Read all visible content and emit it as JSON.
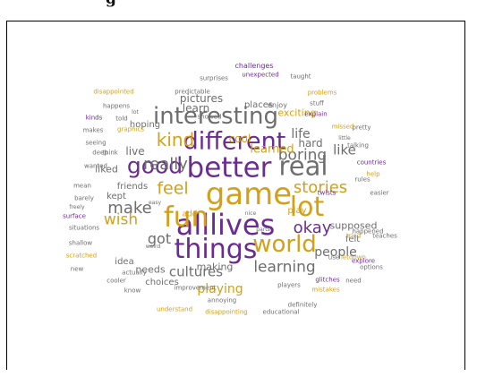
{
  "heading": "g",
  "words": [
    {
      "text": "alllives",
      "color": "purple",
      "size": 32
    },
    {
      "text": "game",
      "color": "gold",
      "size": 34
    },
    {
      "text": "better",
      "color": "purple",
      "size": 31
    },
    {
      "text": "fun",
      "color": "gold",
      "size": 31
    },
    {
      "text": "things",
      "color": "purple",
      "size": 30
    },
    {
      "text": "different",
      "color": "purple",
      "size": 27
    },
    {
      "text": "interesting",
      "color": "gray",
      "size": 26
    },
    {
      "text": "lot",
      "color": "gold",
      "size": 30
    },
    {
      "text": "real",
      "color": "gray",
      "size": 29
    },
    {
      "text": "world",
      "color": "gold",
      "size": 26
    },
    {
      "text": "good",
      "color": "purple",
      "size": 25
    },
    {
      "text": "kind",
      "color": "gold",
      "size": 20
    },
    {
      "text": "really",
      "color": "gray",
      "size": 18
    },
    {
      "text": "feel",
      "color": "gold",
      "size": 19
    },
    {
      "text": "make",
      "color": "gray",
      "size": 18
    },
    {
      "text": "okay",
      "color": "purple",
      "size": 18
    },
    {
      "text": "stories",
      "color": "gold",
      "size": 18
    },
    {
      "text": "boring",
      "color": "gray",
      "size": 17
    },
    {
      "text": "learning",
      "color": "gray",
      "size": 17
    },
    {
      "text": "cultures",
      "color": "gray",
      "size": 15
    },
    {
      "text": "wish",
      "color": "gold",
      "size": 17
    },
    {
      "text": "got",
      "color": "gray",
      "size": 16
    },
    {
      "text": "people",
      "color": "gray",
      "size": 14
    },
    {
      "text": "playing",
      "color": "gold",
      "size": 14
    },
    {
      "text": "like",
      "color": "gray",
      "size": 15
    },
    {
      "text": "life",
      "color": "gray",
      "size": 14
    },
    {
      "text": "learned",
      "color": "gold",
      "size": 13
    },
    {
      "text": "live",
      "color": "gray",
      "size": 12
    },
    {
      "text": "cool",
      "color": "gold",
      "size": 12
    },
    {
      "text": "hard",
      "color": "gray",
      "size": 12
    },
    {
      "text": "learn",
      "color": "gray",
      "size": 12
    },
    {
      "text": "pictures",
      "color": "gray",
      "size": 12
    },
    {
      "text": "exciting",
      "color": "gold",
      "size": 11
    },
    {
      "text": "liked",
      "color": "gray",
      "size": 11
    },
    {
      "text": "friends",
      "color": "gray",
      "size": 10
    },
    {
      "text": "needs",
      "color": "gray",
      "size": 11
    },
    {
      "text": "making",
      "color": "gray",
      "size": 11
    },
    {
      "text": "supposed",
      "color": "gray",
      "size": 11
    },
    {
      "text": "places",
      "color": "gray",
      "size": 10
    },
    {
      "text": "hoping",
      "color": "gray",
      "size": 10
    },
    {
      "text": "idea",
      "color": "gray",
      "size": 10
    },
    {
      "text": "choices",
      "color": "gray",
      "size": 10
    },
    {
      "text": "kept",
      "color": "gray",
      "size": 10
    },
    {
      "text": "felt",
      "color": "gray",
      "size": 10
    },
    {
      "text": "play",
      "color": "gold",
      "size": 10
    },
    {
      "text": "add",
      "color": "gold",
      "size": 9
    },
    {
      "text": "enjoy",
      "color": "gray",
      "size": 8
    },
    {
      "text": "challenges",
      "color": "purple",
      "size": 8
    },
    {
      "text": "surprises",
      "color": "gray",
      "size": 7
    },
    {
      "text": "unexpected",
      "color": "purple",
      "size": 7
    },
    {
      "text": "taught",
      "color": "gray",
      "size": 7
    },
    {
      "text": "disappointed",
      "color": "gold",
      "size": 7
    },
    {
      "text": "predictable",
      "color": "gray",
      "size": 7
    },
    {
      "text": "problems",
      "color": "gold",
      "size": 7
    },
    {
      "text": "stuff",
      "color": "gray",
      "size": 7
    },
    {
      "text": "explain",
      "color": "purple",
      "size": 7
    },
    {
      "text": "happens",
      "color": "gray",
      "size": 7
    },
    {
      "text": "lot",
      "color": "gray",
      "size": 6
    },
    {
      "text": "missed",
      "color": "gold",
      "size": 7
    },
    {
      "text": "kinds",
      "color": "purple",
      "size": 7
    },
    {
      "text": "told",
      "color": "gray",
      "size": 7
    },
    {
      "text": "graphics",
      "color": "gold",
      "size": 7
    },
    {
      "text": "makes",
      "color": "gray",
      "size": 7
    },
    {
      "text": "pretty",
      "color": "gray",
      "size": 7
    },
    {
      "text": "seeing",
      "color": "gray",
      "size": 7
    },
    {
      "text": "little",
      "color": "gray",
      "size": 6
    },
    {
      "text": "talking",
      "color": "gray",
      "size": 7
    },
    {
      "text": "deep",
      "color": "gray",
      "size": 7
    },
    {
      "text": "think",
      "color": "gray",
      "size": 7
    },
    {
      "text": "countries",
      "color": "purple",
      "size": 7
    },
    {
      "text": "wanted",
      "color": "gray",
      "size": 7
    },
    {
      "text": "help",
      "color": "gold",
      "size": 7
    },
    {
      "text": "mean",
      "color": "gray",
      "size": 7
    },
    {
      "text": "rules",
      "color": "gray",
      "size": 7
    },
    {
      "text": "easy",
      "color": "gray",
      "size": 6
    },
    {
      "text": "twists",
      "color": "purple",
      "size": 7
    },
    {
      "text": "barely",
      "color": "gray",
      "size": 7
    },
    {
      "text": "easier",
      "color": "gray",
      "size": 7
    },
    {
      "text": "freely",
      "color": "gray",
      "size": 6
    },
    {
      "text": "nice",
      "color": "gray",
      "size": 6
    },
    {
      "text": "surface",
      "color": "purple",
      "size": 7
    },
    {
      "text": "parts",
      "color": "gray",
      "size": 6
    },
    {
      "text": "happened",
      "color": "gray",
      "size": 7
    },
    {
      "text": "situations",
      "color": "gray",
      "size": 7
    },
    {
      "text": "tried",
      "color": "gold",
      "size": 7
    },
    {
      "text": "teaches",
      "color": "gray",
      "size": 7
    },
    {
      "text": "shallow",
      "color": "gray",
      "size": 7
    },
    {
      "text": "weird",
      "color": "gray",
      "size": 6
    },
    {
      "text": "scratched",
      "color": "gold",
      "size": 7
    },
    {
      "text": "use",
      "color": "gray",
      "size": 7
    },
    {
      "text": "letdown",
      "color": "gold",
      "size": 7
    },
    {
      "text": "explore",
      "color": "purple",
      "size": 7
    },
    {
      "text": "new",
      "color": "gray",
      "size": 7
    },
    {
      "text": "options",
      "color": "gray",
      "size": 7
    },
    {
      "text": "cooler",
      "color": "gray",
      "size": 7
    },
    {
      "text": "actually",
      "color": "gray",
      "size": 7
    },
    {
      "text": "glitches",
      "color": "purple",
      "size": 7
    },
    {
      "text": "mistakes",
      "color": "gold",
      "size": 7
    },
    {
      "text": "know",
      "color": "gray",
      "size": 7
    },
    {
      "text": "improvement",
      "color": "gray",
      "size": 7
    },
    {
      "text": "annoying",
      "color": "gray",
      "size": 7
    },
    {
      "text": "players",
      "color": "gray",
      "size": 7
    },
    {
      "text": "need",
      "color": "gray",
      "size": 7
    },
    {
      "text": "understand",
      "color": "gold",
      "size": 7
    },
    {
      "text": "disappointing",
      "color": "gold",
      "size": 7
    },
    {
      "text": "educational",
      "color": "gray",
      "size": 7
    },
    {
      "text": "definitely",
      "color": "gray",
      "size": 7
    },
    {
      "text": "showed",
      "color": "gray",
      "size": 7
    }
  ],
  "colors": {
    "purple": "#6b2c91",
    "gold": "#d4a017",
    "gray": "#6e6e6e"
  }
}
